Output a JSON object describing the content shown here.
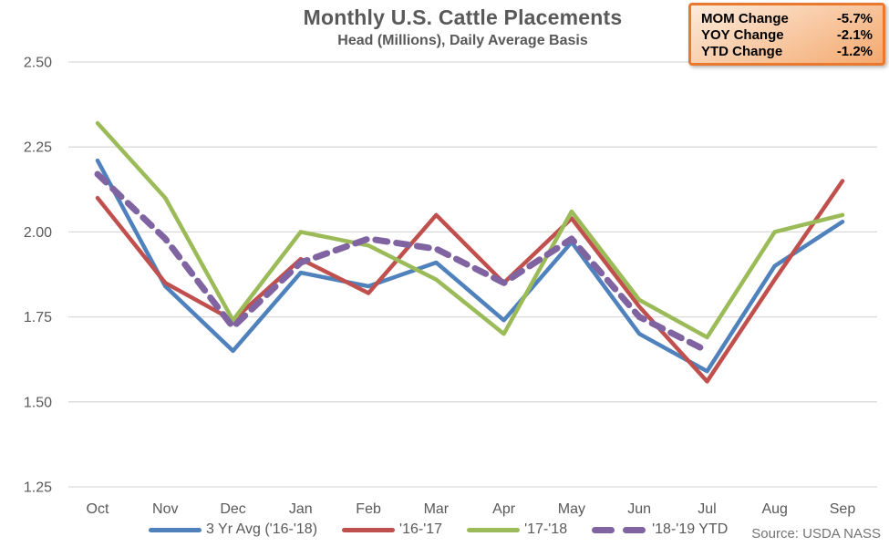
{
  "title": "Monthly U.S. Cattle Placements",
  "subtitle": "Head (Millions), Daily Average Basis",
  "source": "Source: USDA NASS",
  "stats_box": {
    "border_color": "#E8792E",
    "fill_from": "#FCEBDB",
    "fill_to": "#F4A96F",
    "rows": [
      {
        "label": "MOM Change",
        "value": "-5.7%"
      },
      {
        "label": "YOY Change",
        "value": "-2.1%"
      },
      {
        "label": "YTD Change",
        "value": "-1.2%"
      }
    ]
  },
  "chart_data": {
    "type": "line",
    "categories": [
      "Oct",
      "Nov",
      "Dec",
      "Jan",
      "Feb",
      "Mar",
      "Apr",
      "May",
      "Jun",
      "Jul",
      "Aug",
      "Sep"
    ],
    "series": [
      {
        "key": "avg-16-18",
        "name": "3 Yr Avg ('16-'18)",
        "color": "#4F81BD",
        "style": "solid",
        "values": [
          2.21,
          1.84,
          1.65,
          1.88,
          1.84,
          1.91,
          1.74,
          1.97,
          1.7,
          1.59,
          1.9,
          2.03
        ]
      },
      {
        "key": "y16-17",
        "name": "'16-'17",
        "color": "#C0504D",
        "style": "solid",
        "values": [
          2.1,
          1.85,
          1.74,
          1.92,
          1.82,
          2.05,
          1.85,
          2.04,
          1.78,
          1.56,
          1.86,
          2.15
        ]
      },
      {
        "key": "y17-18",
        "name": "'17-'18",
        "color": "#9BBB59",
        "style": "solid",
        "values": [
          2.32,
          2.1,
          1.74,
          2.0,
          1.96,
          1.86,
          1.7,
          2.06,
          1.8,
          1.69,
          2.0,
          2.05
        ]
      },
      {
        "key": "y18-19-ytd",
        "name": "'18-'19 YTD",
        "color": "#8064A2",
        "style": "dashed",
        "values": [
          2.17,
          1.98,
          1.72,
          1.91,
          1.98,
          1.95,
          1.85,
          1.98,
          1.75,
          1.65,
          null,
          null
        ]
      }
    ],
    "ylim": [
      1.25,
      2.5
    ],
    "yticks": [
      2.5,
      2.25,
      2.0,
      1.75,
      1.5,
      1.25
    ],
    "ytick_labels": [
      "2.50",
      "2.25",
      "2.00",
      "1.75",
      "1.50",
      "1.25"
    ],
    "xlabel": "",
    "ylabel": "",
    "grid": "horizontal",
    "gridline_color": "#D9D9D9",
    "axis_label_color": "#595959",
    "legend_position": "bottom"
  }
}
